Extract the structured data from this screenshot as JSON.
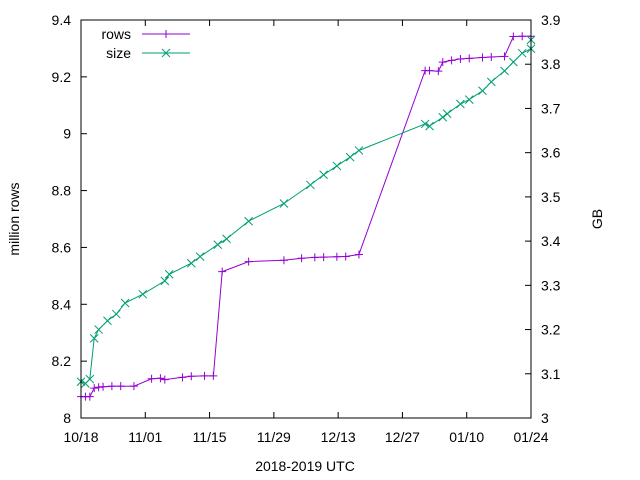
{
  "chart_data": {
    "type": "line",
    "xlabel": "2018-2019 UTC",
    "ylabel": "million rows",
    "y2label": "GB",
    "x_tick_labels": [
      "10/18",
      "11/01",
      "11/15",
      "11/29",
      "12/13",
      "12/27",
      "01/10",
      "01/24"
    ],
    "x_range": [
      "2018-10-14",
      "2019-01-24"
    ],
    "ylim": [
      8.0,
      9.4
    ],
    "y_ticks": [
      "8",
      "8.2",
      "8.4",
      "8.6",
      "8.8",
      "9",
      "9.2",
      "9.4"
    ],
    "y2lim": [
      3.0,
      3.9
    ],
    "y2_ticks": [
      "3",
      "3.1",
      "3.2",
      "3.3",
      "3.4",
      "3.5",
      "3.6",
      "3.7",
      "3.8",
      "3.9"
    ],
    "grid": false,
    "legend_position": "top-left",
    "series": [
      {
        "name": "rows",
        "axis": "left",
        "color": "#9400d3",
        "marker": "plus",
        "points": [
          [
            "2018-10-14",
            8.075
          ],
          [
            "2018-10-15",
            8.075
          ],
          [
            "2018-10-16",
            8.075
          ],
          [
            "2018-10-17",
            8.105
          ],
          [
            "2018-10-18",
            8.108
          ],
          [
            "2018-10-19",
            8.11
          ],
          [
            "2018-10-21",
            8.112
          ],
          [
            "2018-10-23",
            8.112
          ],
          [
            "2018-10-26",
            8.112
          ],
          [
            "2018-10-30",
            8.138
          ],
          [
            "2018-11-01",
            8.14
          ],
          [
            "2018-11-02",
            8.135
          ],
          [
            "2018-11-06",
            8.143
          ],
          [
            "2018-11-08",
            8.147
          ],
          [
            "2018-11-11",
            8.148
          ],
          [
            "2018-11-13",
            8.148
          ],
          [
            "2018-11-15",
            8.515
          ],
          [
            "2018-11-21",
            8.55
          ],
          [
            "2018-11-29",
            8.555
          ],
          [
            "2018-12-03",
            8.562
          ],
          [
            "2018-12-06",
            8.565
          ],
          [
            "2018-12-08",
            8.566
          ],
          [
            "2018-12-11",
            8.567
          ],
          [
            "2018-12-13",
            8.568
          ],
          [
            "2018-12-16",
            8.575
          ],
          [
            "2018-12-31",
            9.222
          ],
          [
            "2019-01-01",
            9.222
          ],
          [
            "2019-01-03",
            9.22
          ],
          [
            "2019-01-04",
            9.252
          ],
          [
            "2019-01-06",
            9.258
          ],
          [
            "2019-01-08",
            9.263
          ],
          [
            "2019-01-10",
            9.265
          ],
          [
            "2019-01-13",
            9.268
          ],
          [
            "2019-01-15",
            9.27
          ],
          [
            "2019-01-18",
            9.272
          ],
          [
            "2019-01-20",
            9.342
          ],
          [
            "2019-01-22",
            9.343
          ],
          [
            "2019-01-24",
            9.343
          ]
        ]
      },
      {
        "name": "size",
        "axis": "right",
        "color": "#009e73",
        "marker": "cross",
        "points": [
          [
            "2018-10-14",
            3.082
          ],
          [
            "2018-10-15",
            3.078
          ],
          [
            "2018-10-16",
            3.088
          ],
          [
            "2018-10-17",
            3.18
          ],
          [
            "2018-10-18",
            3.2
          ],
          [
            "2018-10-20",
            3.22
          ],
          [
            "2018-10-22",
            3.235
          ],
          [
            "2018-10-24",
            3.26
          ],
          [
            "2018-10-28",
            3.28
          ],
          [
            "2018-11-02",
            3.31
          ],
          [
            "2018-11-03",
            3.325
          ],
          [
            "2018-11-08",
            3.35
          ],
          [
            "2018-11-10",
            3.365
          ],
          [
            "2018-11-14",
            3.392
          ],
          [
            "2018-11-16",
            3.405
          ],
          [
            "2018-11-21",
            3.445
          ],
          [
            "2018-11-29",
            3.485
          ],
          [
            "2018-12-05",
            3.527
          ],
          [
            "2018-12-08",
            3.55
          ],
          [
            "2018-12-11",
            3.57
          ],
          [
            "2018-12-14",
            3.59
          ],
          [
            "2018-12-16",
            3.605
          ],
          [
            "2018-12-31",
            3.665
          ],
          [
            "2019-01-01",
            3.66
          ],
          [
            "2019-01-04",
            3.68
          ],
          [
            "2019-01-05",
            3.688
          ],
          [
            "2019-01-08",
            3.71
          ],
          [
            "2019-01-10",
            3.72
          ],
          [
            "2019-01-13",
            3.74
          ],
          [
            "2019-01-15",
            3.76
          ],
          [
            "2019-01-18",
            3.785
          ],
          [
            "2019-01-20",
            3.805
          ],
          [
            "2019-01-22",
            3.825
          ],
          [
            "2019-01-24",
            3.835
          ],
          [
            "2019-01-24",
            3.855
          ]
        ]
      }
    ]
  }
}
